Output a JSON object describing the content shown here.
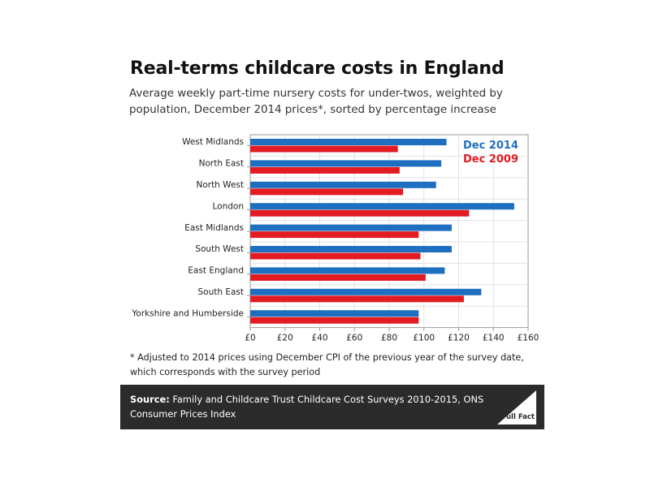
{
  "title": "Real-terms childcare costs in England",
  "subtitle": "Average weekly part-time nursery costs for under-twos, weighted by population, December 2014 prices*, sorted by percentage increase",
  "footnote": "* Adjusted to 2014 prices using December CPI of the previous year of the survey date, which corresponds with the survey period",
  "source": {
    "label": "Source:",
    "text": "Family and Childcare Trust Childcare Cost Surveys 2010-2015, ONS Consumer Prices Index"
  },
  "logo_text": "Full Fact",
  "chart_data": {
    "type": "bar",
    "orientation": "horizontal",
    "categories": [
      "West Midlands",
      "North East",
      "North West",
      "London",
      "East Midlands",
      "South West",
      "East England",
      "South East",
      "Yorkshire and Humberside"
    ],
    "series": [
      {
        "name": "Dec 2014",
        "color": "#1f6fc0",
        "values": [
          113,
          110,
          107,
          152,
          116,
          116,
          112,
          133,
          97
        ]
      },
      {
        "name": "Dec 2009",
        "color": "#e31b23",
        "values": [
          85,
          86,
          88,
          126,
          97,
          98,
          101,
          123,
          97
        ]
      }
    ],
    "xlim": [
      0,
      160
    ],
    "xticks": [
      "£0",
      "£20",
      "£40",
      "£60",
      "£80",
      "£100",
      "£120",
      "£140",
      "£160"
    ],
    "grid": true,
    "legend": "top-right"
  }
}
